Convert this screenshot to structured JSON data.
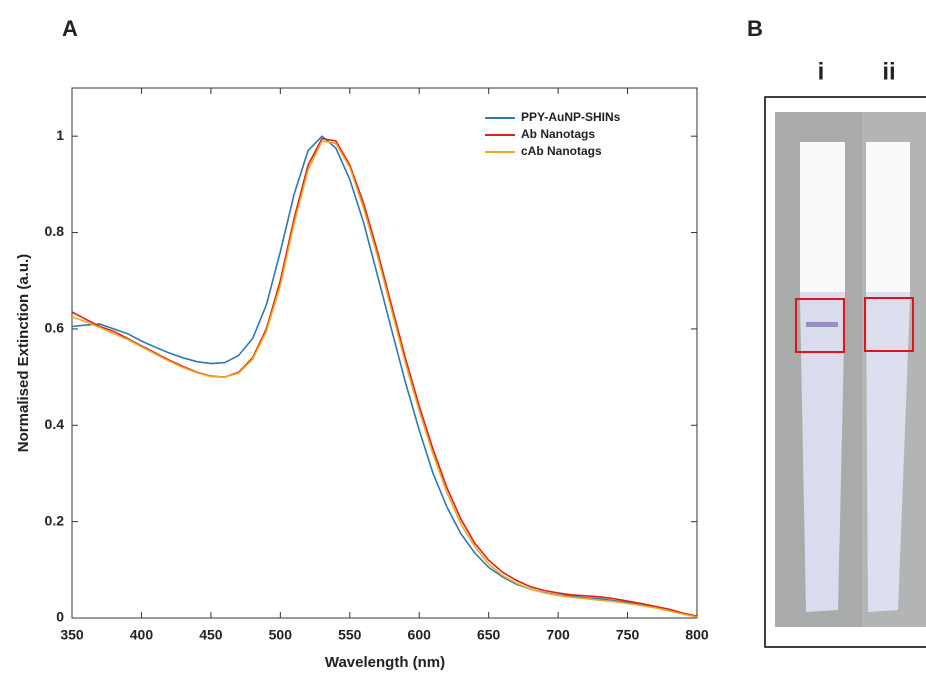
{
  "chart_data": {
    "type": "line",
    "xlabel": "Wavelength (nm)",
    "ylabel": "Normalised Extinction (a.u.)",
    "x": [
      350,
      360,
      370,
      380,
      390,
      400,
      410,
      420,
      430,
      440,
      450,
      460,
      470,
      480,
      490,
      500,
      510,
      520,
      530,
      540,
      550,
      560,
      570,
      580,
      590,
      600,
      610,
      620,
      630,
      640,
      650,
      660,
      670,
      680,
      690,
      700,
      710,
      720,
      730,
      740,
      750,
      760,
      770,
      780,
      790,
      800
    ],
    "series": [
      {
        "name": "PPY-AuNP-SHINs",
        "color": "#2a7ab8",
        "values": [
          0.605,
          0.608,
          0.61,
          0.6,
          0.59,
          0.575,
          0.562,
          0.55,
          0.54,
          0.532,
          0.528,
          0.53,
          0.545,
          0.58,
          0.65,
          0.76,
          0.88,
          0.97,
          1.0,
          0.975,
          0.91,
          0.82,
          0.71,
          0.6,
          0.49,
          0.39,
          0.3,
          0.23,
          0.175,
          0.135,
          0.105,
          0.085,
          0.07,
          0.06,
          0.053,
          0.048,
          0.045,
          0.042,
          0.04,
          0.036,
          0.032,
          0.027,
          0.022,
          0.016,
          0.01,
          0.003
        ]
      },
      {
        "name": "Ab Nanotags",
        "color": "#e0201c",
        "values": [
          0.635,
          0.62,
          0.605,
          0.595,
          0.58,
          0.565,
          0.55,
          0.535,
          0.522,
          0.51,
          0.502,
          0.5,
          0.51,
          0.54,
          0.6,
          0.7,
          0.83,
          0.94,
          0.995,
          0.99,
          0.94,
          0.86,
          0.76,
          0.65,
          0.54,
          0.44,
          0.35,
          0.27,
          0.205,
          0.155,
          0.12,
          0.095,
          0.078,
          0.065,
          0.057,
          0.052,
          0.048,
          0.046,
          0.044,
          0.04,
          0.035,
          0.03,
          0.024,
          0.018,
          0.01,
          0.004
        ]
      },
      {
        "name": "cAb Nanotags",
        "color": "#f0a91c",
        "values": [
          0.625,
          0.615,
          0.603,
          0.59,
          0.578,
          0.563,
          0.548,
          0.533,
          0.52,
          0.509,
          0.501,
          0.5,
          0.508,
          0.537,
          0.595,
          0.69,
          0.82,
          0.93,
          0.99,
          0.985,
          0.935,
          0.85,
          0.75,
          0.64,
          0.53,
          0.43,
          0.34,
          0.26,
          0.195,
          0.148,
          0.112,
          0.088,
          0.072,
          0.06,
          0.052,
          0.047,
          0.043,
          0.04,
          0.037,
          0.034,
          0.03,
          0.026,
          0.021,
          0.015,
          0.008,
          0.002
        ]
      }
    ],
    "xlim": [
      350,
      800
    ],
    "ylim": [
      0,
      1.1
    ],
    "xticks": [
      350,
      400,
      450,
      500,
      550,
      600,
      650,
      700,
      750,
      800
    ],
    "yticks": [
      0,
      0.2,
      0.4,
      0.6,
      0.8,
      1
    ],
    "legend": "upper right"
  },
  "panel_labels": [
    "A",
    "B"
  ],
  "strip_labels": [
    "i",
    "ii"
  ]
}
